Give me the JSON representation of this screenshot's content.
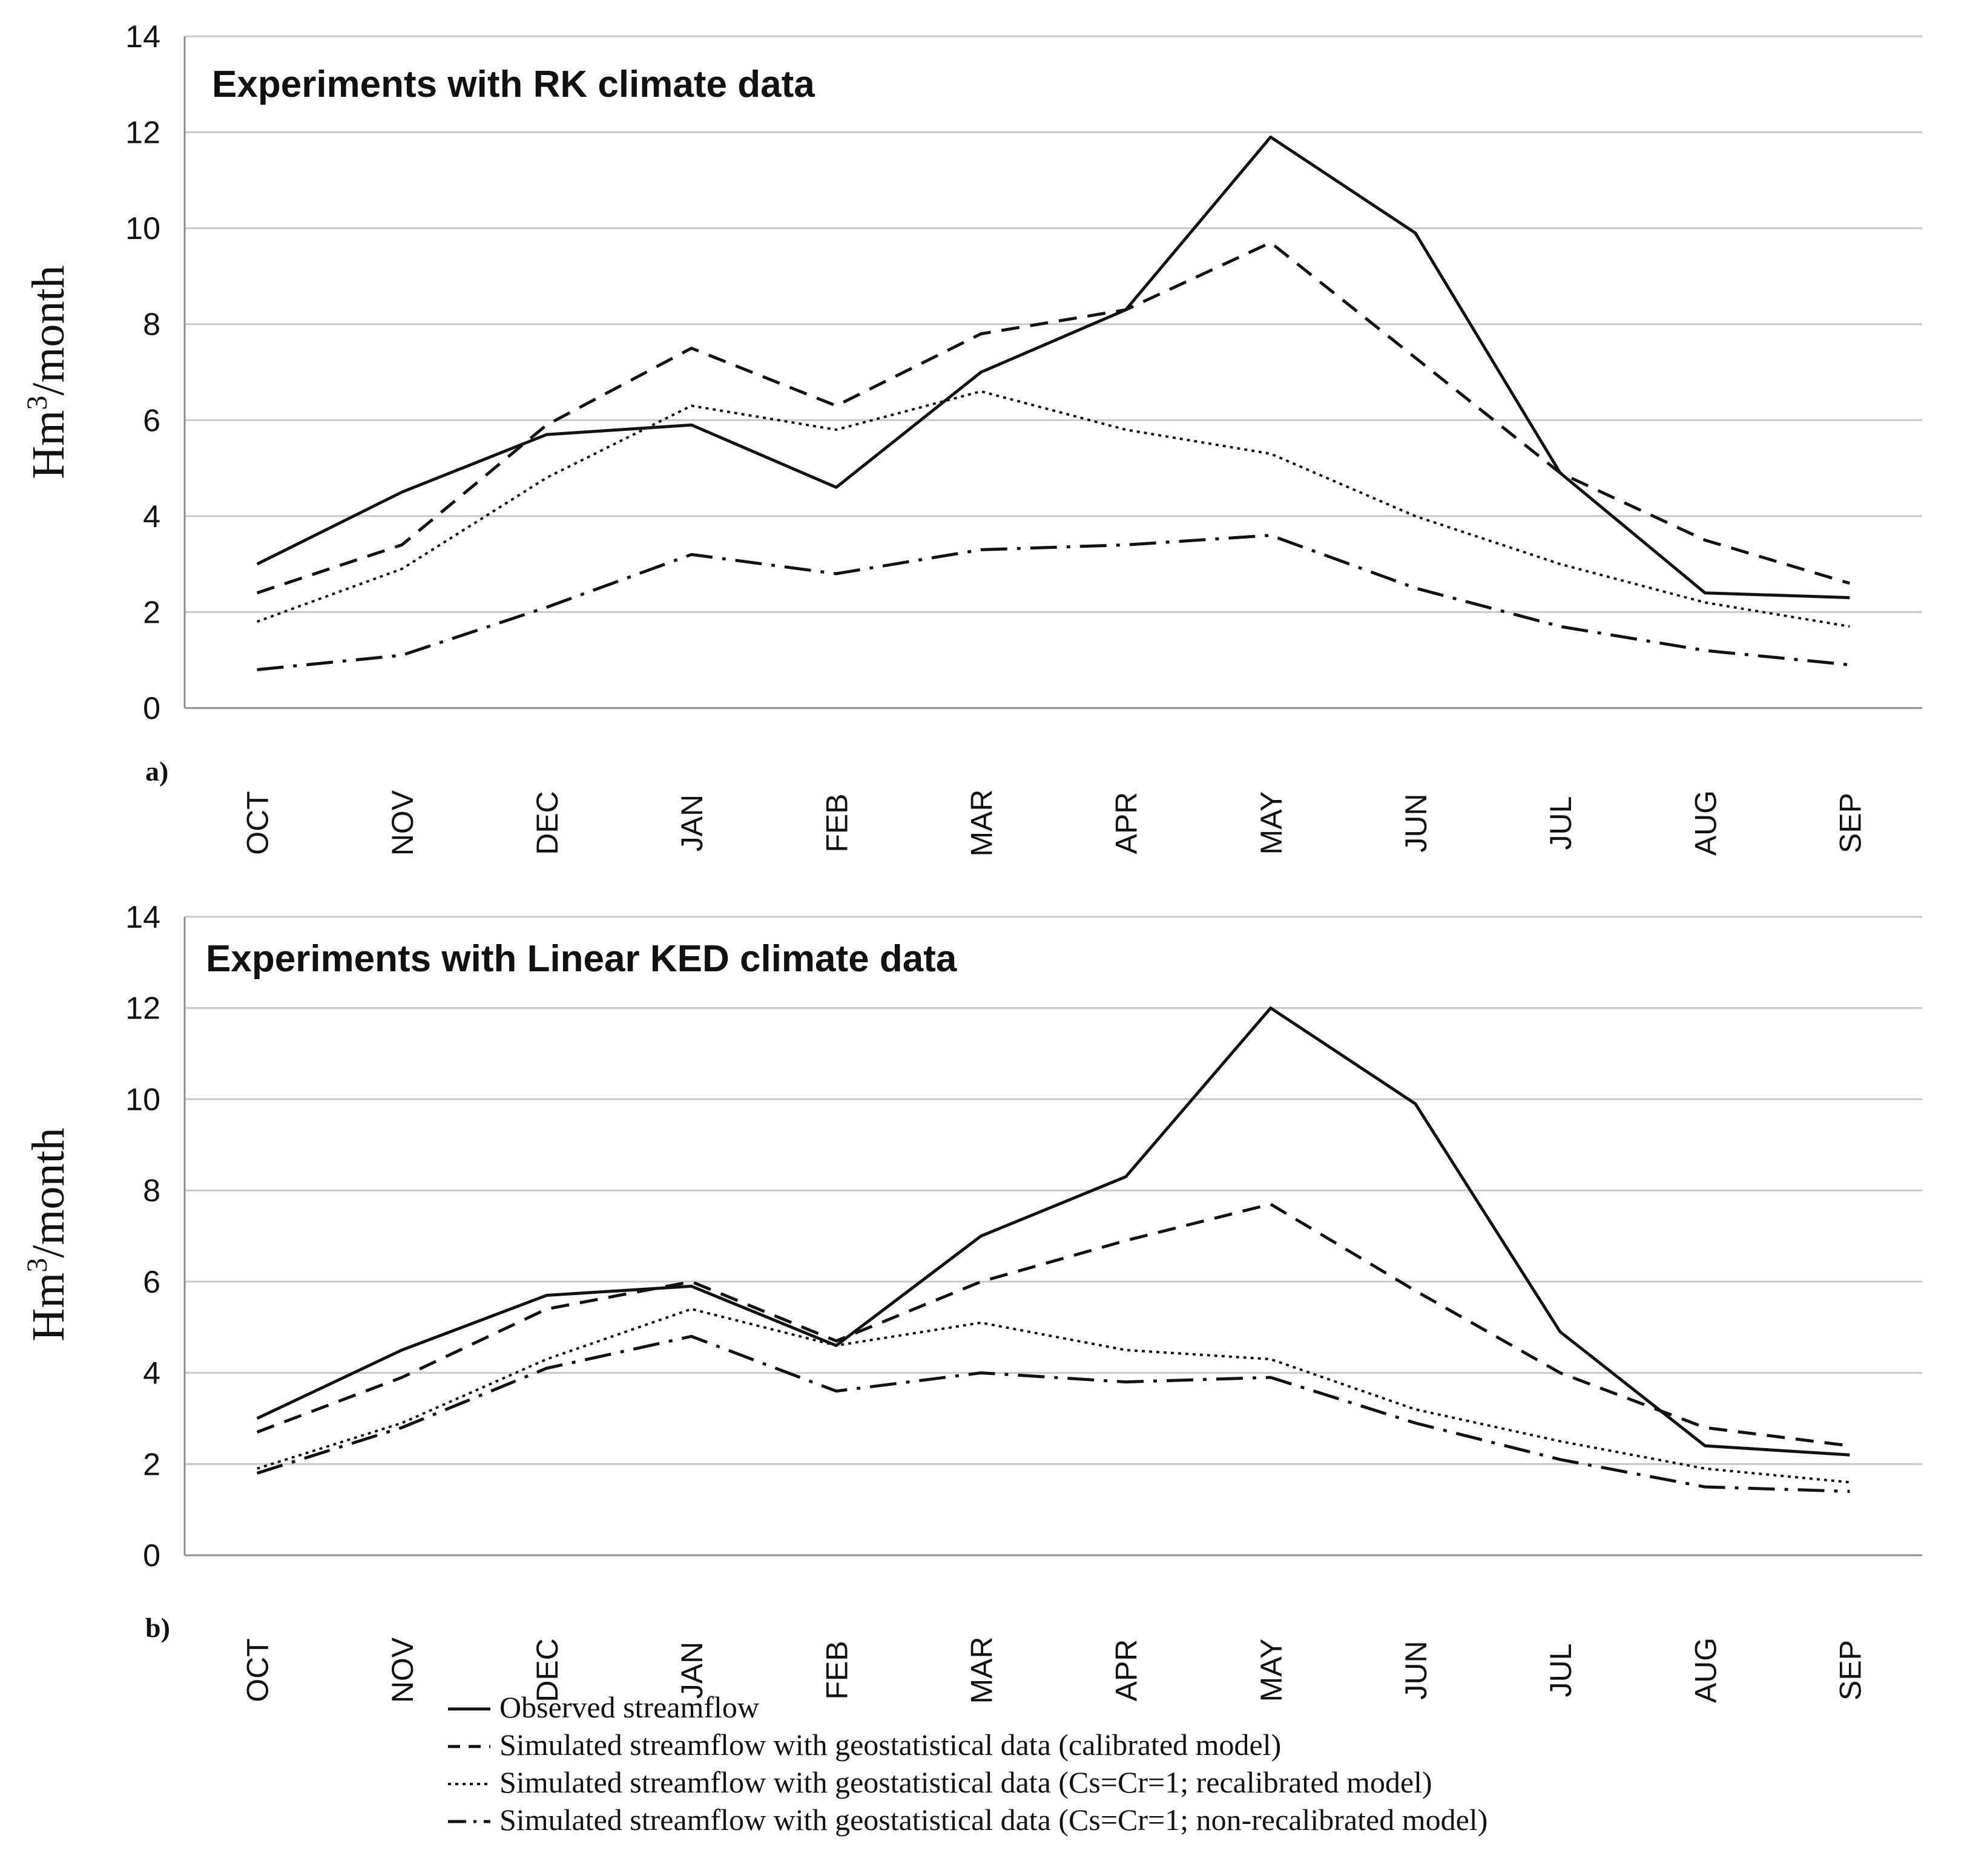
{
  "chart_data": [
    {
      "type": "line",
      "title": "Experiments with RK climate data",
      "panel_label": "a)",
      "ylabel_main": "Hm",
      "ylabel_sup": "3",
      "ylabel_rest": "/month",
      "ylim": [
        0,
        14
      ],
      "yticks": [
        "0",
        "2",
        "4",
        "6",
        "8",
        "10",
        "12",
        "14"
      ],
      "grid": true,
      "categories": [
        "OCT",
        "NOV",
        "DEC",
        "JAN",
        "FEB",
        "MAR",
        "APR",
        "MAY",
        "JUN",
        "JUL",
        "AUG",
        "SEP"
      ],
      "series": [
        {
          "name": "Observed streamflow",
          "values": [
            3.0,
            4.5,
            5.7,
            5.9,
            4.6,
            7.0,
            8.3,
            11.9,
            9.9,
            4.9,
            2.4,
            2.3
          ]
        },
        {
          "name": "Simulated streamflow with geostatistical data (calibrated model)",
          "values": [
            2.4,
            3.4,
            5.9,
            7.5,
            6.3,
            7.8,
            8.3,
            9.7,
            7.3,
            4.9,
            3.5,
            2.6
          ]
        },
        {
          "name": "Simulated streamflow with geostatistical data (Cs=Cr=1;  recalibrated model)",
          "values": [
            1.8,
            2.9,
            4.8,
            6.3,
            5.8,
            6.6,
            5.8,
            5.3,
            4.0,
            3.0,
            2.2,
            1.7
          ]
        },
        {
          "name": "Simulated streamflow with geostatistical data (Cs=Cr=1; non-recalibrated model)",
          "values": [
            0.8,
            1.1,
            2.1,
            3.2,
            2.8,
            3.3,
            3.4,
            3.6,
            2.5,
            1.7,
            1.2,
            0.9
          ]
        }
      ]
    },
    {
      "type": "line",
      "title": "Experiments with Linear KED climate data",
      "panel_label": "b)",
      "ylabel_main": "Hm",
      "ylabel_sup": "3",
      "ylabel_rest": "/month",
      "ylim": [
        0,
        14
      ],
      "yticks": [
        "0",
        "2",
        "4",
        "6",
        "8",
        "10",
        "12",
        "14"
      ],
      "grid": true,
      "categories": [
        "OCT",
        "NOV",
        "DEC",
        "JAN",
        "FEB",
        "MAR",
        "APR",
        "MAY",
        "JUN",
        "JUL",
        "AUG",
        "SEP"
      ],
      "series": [
        {
          "name": "Observed streamflow",
          "values": [
            3.0,
            4.5,
            5.7,
            5.9,
            4.6,
            7.0,
            8.3,
            12.0,
            9.9,
            4.9,
            2.4,
            2.2
          ]
        },
        {
          "name": "Simulated streamflow with geostatistical data (calibrated model)",
          "values": [
            2.7,
            3.9,
            5.4,
            6.0,
            4.7,
            6.0,
            6.9,
            7.7,
            5.8,
            4.0,
            2.8,
            2.4
          ]
        },
        {
          "name": "Simulated streamflow with geostatistical data (Cs=Cr=1;  recalibrated model)",
          "values": [
            1.9,
            2.9,
            4.3,
            5.4,
            4.6,
            5.1,
            4.5,
            4.3,
            3.2,
            2.5,
            1.9,
            1.6
          ]
        },
        {
          "name": "Simulated streamflow with geostatistical data (Cs=Cr=1; non-recalibrated model)",
          "values": [
            1.8,
            2.8,
            4.1,
            4.8,
            3.6,
            4.0,
            3.8,
            3.9,
            2.9,
            2.1,
            1.5,
            1.4
          ]
        }
      ]
    }
  ],
  "legend": {
    "entries": [
      "Observed streamflow",
      "Simulated streamflow with geostatistical data (calibrated model)",
      "Simulated streamflow with geostatistical data (Cs=Cr=1;  recalibrated model)",
      "Simulated streamflow with geostatistical data (Cs=Cr=1; non-recalibrated model)"
    ]
  }
}
